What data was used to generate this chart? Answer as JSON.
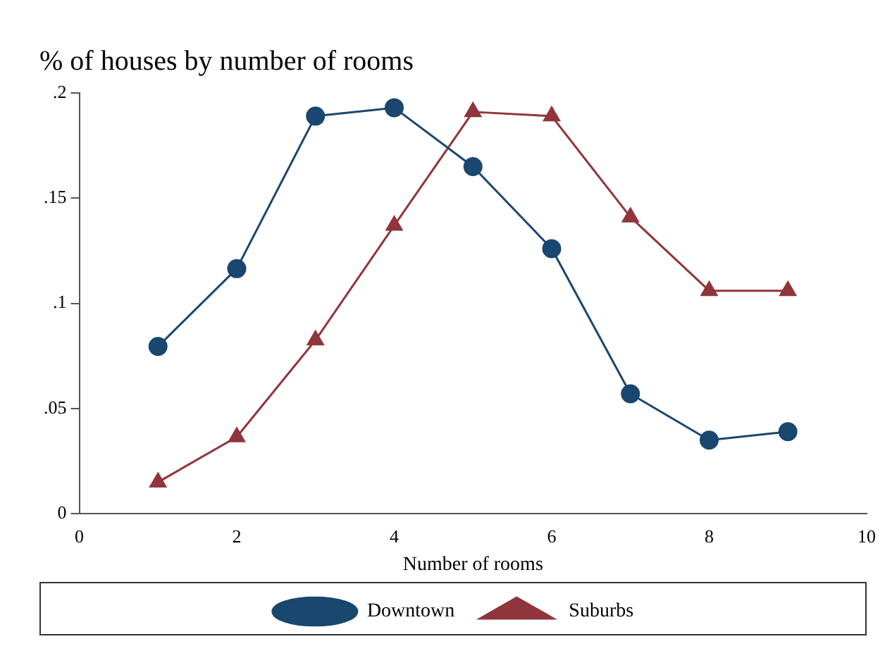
{
  "chart_data": {
    "type": "line",
    "title": "% of houses by number of rooms",
    "xlabel": "Number of rooms",
    "x": [
      1,
      2,
      3,
      4,
      5,
      6,
      7,
      8,
      9
    ],
    "series": [
      {
        "name": "Downtown",
        "color": "#1a476f",
        "marker": "circle",
        "values": [
          0.0795,
          0.1165,
          0.189,
          0.193,
          0.165,
          0.126,
          0.057,
          0.035,
          0.039
        ]
      },
      {
        "name": "Suburbs",
        "color": "#90353b",
        "marker": "triangle",
        "values": [
          0.015,
          0.0365,
          0.0825,
          0.137,
          0.191,
          0.189,
          0.141,
          0.106,
          0.106
        ]
      }
    ],
    "xlim": [
      0,
      10
    ],
    "xticks": [
      0,
      2,
      4,
      6,
      8,
      10
    ],
    "ylim": [
      0,
      0.2
    ],
    "yticks": [
      {
        "value": 0,
        "label": "0"
      },
      {
        "value": 0.05,
        "label": ".05"
      },
      {
        "value": 0.1,
        "label": ".1"
      },
      {
        "value": 0.15,
        "label": ".15"
      },
      {
        "value": 0.2,
        "label": ".2"
      }
    ],
    "grid": false,
    "legend": "bottom"
  }
}
